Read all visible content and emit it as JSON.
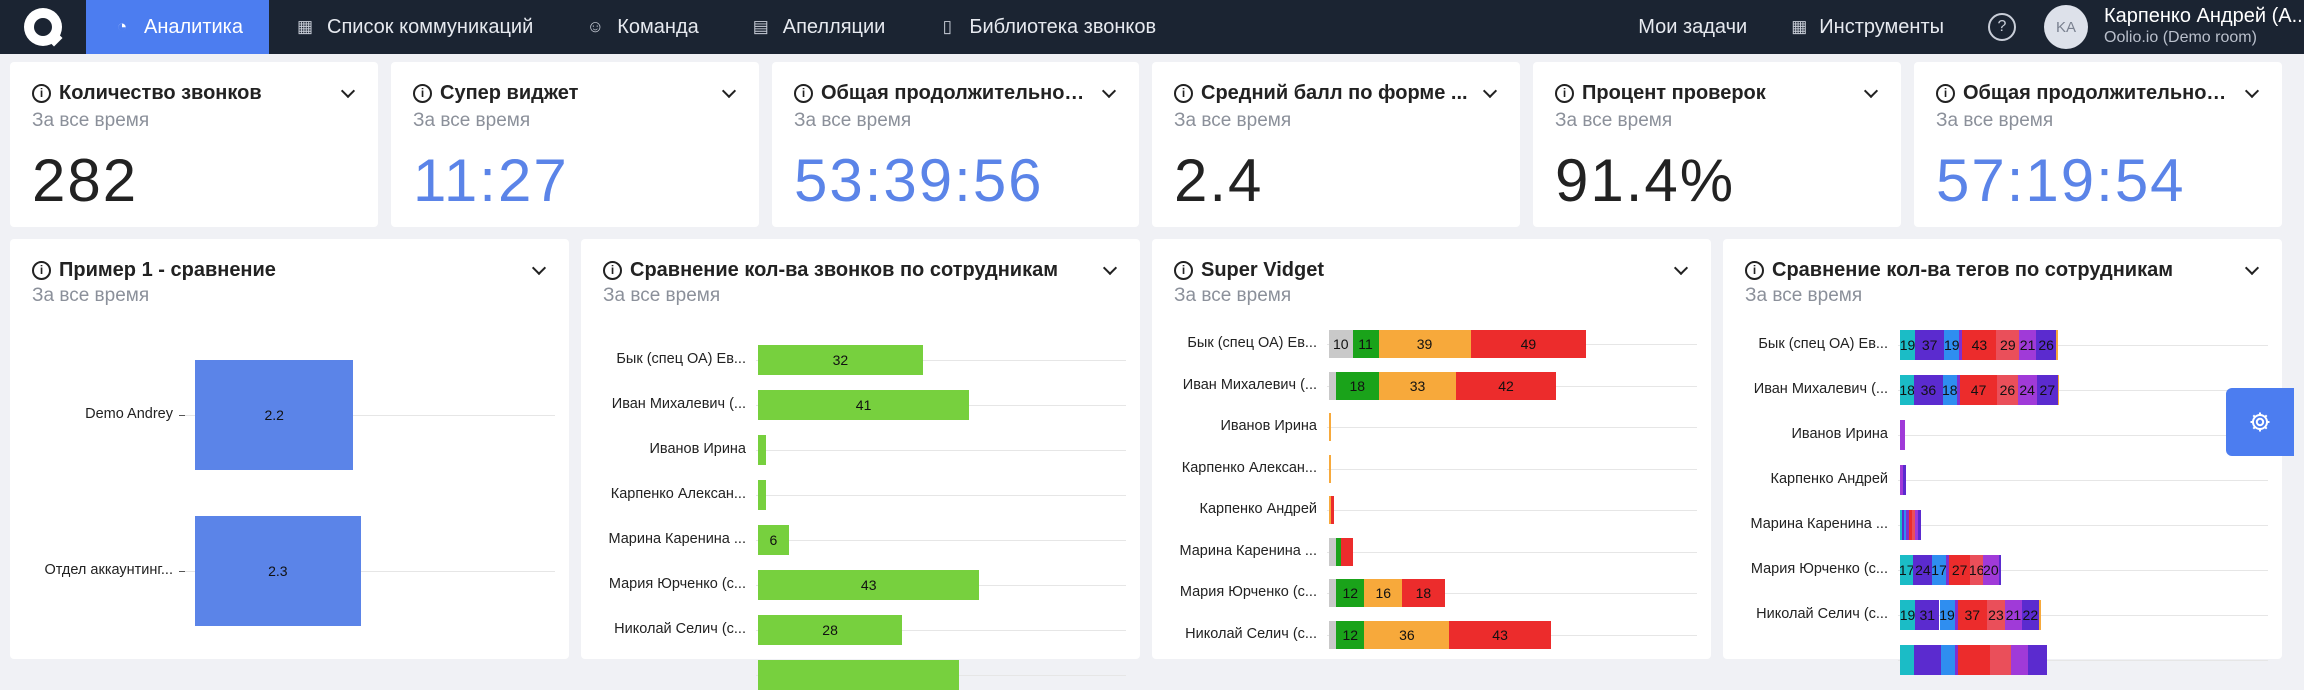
{
  "nav": {
    "items": [
      {
        "label": "Аналитика",
        "icon": "dashboard-icon",
        "glyph": "◔",
        "active": true
      },
      {
        "label": "Список коммуникаций",
        "icon": "table-icon",
        "glyph": "▦",
        "active": false
      },
      {
        "label": "Команда",
        "icon": "team-icon",
        "glyph": "☺",
        "active": false
      },
      {
        "label": "Апелляции",
        "icon": "appeal-icon",
        "glyph": "▤",
        "active": false
      },
      {
        "label": "Библиотека звонков",
        "icon": "library-icon",
        "glyph": "▯",
        "active": false
      }
    ],
    "my_tasks": "Мои задачи",
    "tools": "Инструменты",
    "help": "?",
    "avatar": "KA",
    "user_name": "Карпенко Андрей (А...",
    "user_org": "Oolio.io (Demo room)"
  },
  "period": "За все время",
  "kpis": [
    {
      "title": "Количество звонков",
      "value": "282",
      "blue": false
    },
    {
      "title": "Супер виджет",
      "value": "11:27",
      "blue": true
    },
    {
      "title": "Общая продолжительнос...",
      "value": "53:39:56",
      "blue": true
    },
    {
      "title": "Средний балл по форме ...",
      "value": "2.4",
      "blue": false
    },
    {
      "title": "Процент проверок",
      "value": "91.4%",
      "blue": false
    },
    {
      "title": "Общая продолжительнос...",
      "value": "57:19:54",
      "blue": true
    }
  ],
  "charts": {
    "c1": {
      "title": "Пример 1 - сравнение"
    },
    "c2": {
      "title": "Сравнение кол-ва звонков по сотрудникам"
    },
    "c3": {
      "title": "Super Vidget"
    },
    "c4": {
      "title": "Сравнение кол-ва тегов по сотрудникам"
    }
  },
  "chart_data": [
    {
      "type": "bar",
      "orientation": "horizontal",
      "categories": [
        "Demo Andrey",
        "Отдел аккаунтинг..."
      ],
      "values": [
        2.2,
        2.3
      ],
      "color": "#5b84e8"
    },
    {
      "type": "bar",
      "orientation": "horizontal",
      "categories": [
        "Бык (спец ОА) Ев...",
        "Иван Михалевич (...",
        "Иванов Ирина",
        "Карпенко Алексан...",
        "Марина Каренина ...",
        "Мария Юрченко (с...",
        "Николай Селич (с...",
        ""
      ],
      "values": [
        32,
        41,
        1,
        1,
        6,
        43,
        28,
        39
      ],
      "labels": [
        "32",
        "41",
        "",
        "",
        "6",
        "43",
        "28",
        ""
      ],
      "color": "#77d03e"
    },
    {
      "type": "bar",
      "orientation": "horizontal",
      "stacked": true,
      "categories": [
        "Бык (спец ОА) Ев...",
        "Иван Михалевич (...",
        "Иванов Ирина",
        "Карпенко Алексан...",
        "Карпенко Андрей",
        "Марина Каренина ...",
        "Мария Юрченко (с...",
        "Николай Селич (с..."
      ],
      "colors": [
        "#c9c9c9",
        "#1aa31a",
        "#f7a93b",
        "#ec2c2c"
      ],
      "rows": [
        [
          10,
          11,
          39,
          49
        ],
        [
          3,
          18,
          33,
          42
        ],
        [
          0,
          0,
          1,
          0
        ],
        [
          0,
          0,
          1,
          0
        ],
        [
          0,
          0,
          1,
          1
        ],
        [
          3,
          2,
          0,
          5
        ],
        [
          3,
          12,
          16,
          18
        ],
        [
          3,
          12,
          36,
          43
        ]
      ],
      "labels": [
        [
          "10",
          "11",
          "39",
          "49"
        ],
        [
          "",
          "18",
          "33",
          "42"
        ],
        [
          "",
          "",
          "",
          ""
        ],
        [
          "",
          "",
          "",
          ""
        ],
        [
          "",
          "",
          "",
          ""
        ],
        [
          "",
          "",
          "",
          ""
        ],
        [
          "",
          "12",
          "16",
          "18"
        ],
        [
          "",
          "12",
          "36",
          "43"
        ]
      ]
    },
    {
      "type": "bar",
      "orientation": "horizontal",
      "stacked": true,
      "categories": [
        "Бык (спец ОА) Ев...",
        "Иван Михалевич (...",
        "Иванов Ирина",
        "Карпенко Андрей",
        "Марина Каренина ...",
        "Мария Юрченко (с...",
        "Николай Селич (с...",
        ""
      ],
      "colors": [
        "#1bbcc6",
        "#5b2bcf",
        "#2f8ef0",
        "#7f2fd0",
        "#ec2c2c",
        "#ea4f5a",
        "#a03ad8",
        "#5b2bcf",
        "#f7a93b"
      ],
      "rows": [
        [
          19,
          37,
          19,
          4,
          43,
          29,
          21,
          26,
          2
        ],
        [
          18,
          36,
          18,
          4,
          47,
          26,
          24,
          27,
          1
        ],
        [
          0,
          0,
          0,
          0,
          0,
          0,
          6,
          0,
          0
        ],
        [
          0,
          0,
          0,
          0,
          0,
          0,
          4,
          4,
          0
        ],
        [
          2,
          3,
          3,
          3,
          4,
          4,
          4,
          4,
          0
        ],
        [
          17,
          24,
          17,
          4,
          27,
          16,
          20,
          3,
          0
        ],
        [
          19,
          31,
          19,
          4,
          37,
          23,
          21,
          22,
          2
        ],
        [
          18,
          34,
          18,
          4,
          40,
          26,
          22,
          24,
          0
        ]
      ],
      "labels": [
        [
          "19",
          "37",
          "19",
          "",
          "43",
          "29",
          "21",
          "26",
          ""
        ],
        [
          "18",
          "36",
          "18",
          "",
          "47",
          "26",
          "24",
          "27",
          ""
        ],
        [
          "",
          "",
          "",
          "",
          "",
          "",
          "",
          "",
          ""
        ],
        [
          "",
          "",
          "",
          "",
          "",
          "",
          "",
          "",
          ""
        ],
        [
          "",
          "",
          "",
          "",
          "",
          "",
          "",
          "",
          ""
        ],
        [
          "17",
          "24",
          "17",
          "",
          "27",
          "16",
          "20",
          "",
          ""
        ],
        [
          "19",
          "31",
          "19",
          "",
          "37",
          "23",
          "21",
          "22",
          ""
        ],
        [
          "",
          "",
          "",
          "",
          "",
          "",
          "",
          "",
          ""
        ]
      ]
    }
  ]
}
